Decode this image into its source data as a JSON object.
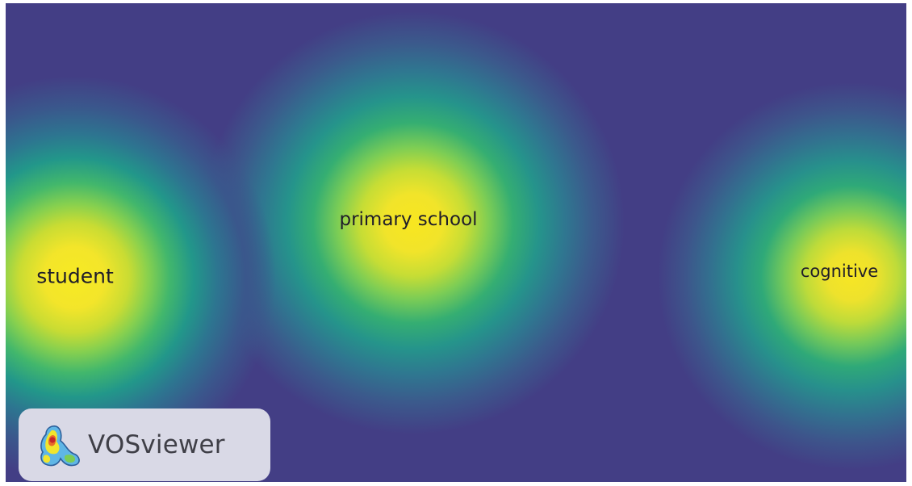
{
  "map": {
    "type": "density-visualization",
    "items": [
      {
        "label": "student",
        "density": "high"
      },
      {
        "label": "primary school",
        "density": "high"
      },
      {
        "label": "cognitive",
        "density": "high"
      }
    ],
    "colors": {
      "background": "#433e85",
      "peak": "#f7ea23",
      "mid": "#42b76c",
      "low": "#2d7590",
      "label_text": "#1f1d2a"
    }
  },
  "logo": {
    "text": "VOSviewer",
    "icon": "vosviewer-density-logo-icon",
    "background": "#d9d9e6"
  }
}
